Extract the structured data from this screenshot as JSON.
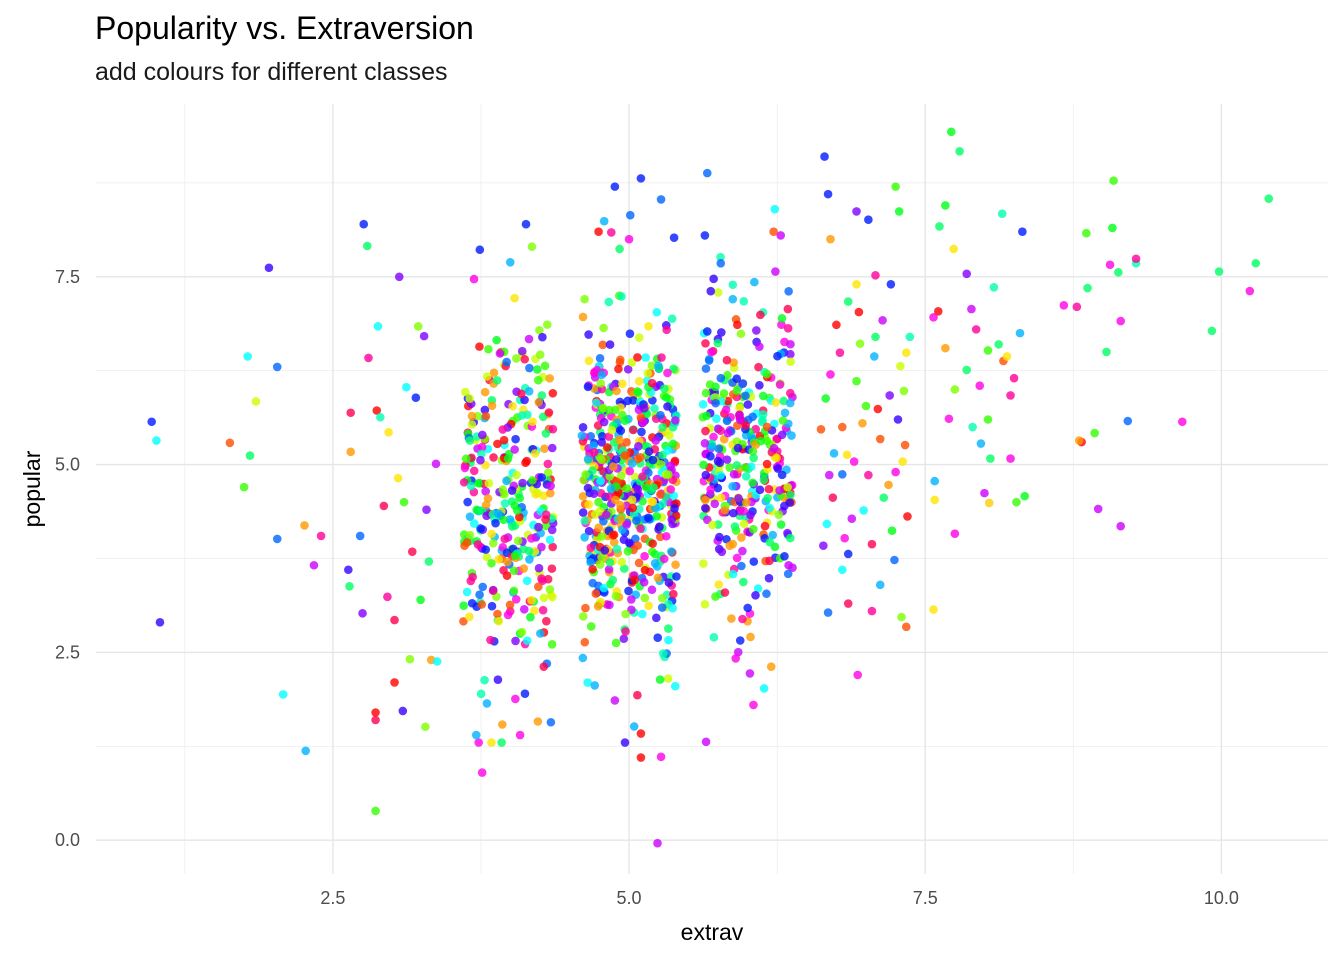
{
  "title": "Popularity vs. Extraversion",
  "subtitle": "add colours for different classes",
  "chart_data": {
    "type": "scatter",
    "title": "Popularity vs. Extraversion",
    "subtitle": "add colours for different classes",
    "xlabel": "extrav",
    "ylabel": "popular",
    "xlim": [
      0.5,
      10.9
    ],
    "ylim": [
      -0.45,
      9.8
    ],
    "x_ticks": [
      2.5,
      5.0,
      7.5,
      10.0
    ],
    "x_tick_labels": [
      "2.5",
      "5.0",
      "7.5",
      "10.0"
    ],
    "y_ticks": [
      0.0,
      2.5,
      5.0,
      7.5
    ],
    "y_tick_labels": [
      "0.0",
      "2.5",
      "5.0",
      "7.5"
    ],
    "grid": true,
    "legend": "none",
    "point_alpha": 0.8,
    "palette": [
      "#FF0000",
      "#FF4D00",
      "#FF9900",
      "#FFE500",
      "#CCFF00",
      "#80FF00",
      "#33FF00",
      "#00FF19",
      "#00FF66",
      "#00FFB2",
      "#00FFFF",
      "#00B3FF",
      "#0066FF",
      "#001AFF",
      "#3300FF",
      "#8000FF",
      "#CC00FF",
      "#FF00E6",
      "#FF0099",
      "#FF004D"
    ],
    "points": [
      {
        "x": 0.97,
        "y": 5.57,
        "color": "#001AFF"
      },
      {
        "x": 1.01,
        "y": 5.32,
        "color": "#00FFFF"
      },
      {
        "x": 1.04,
        "y": 2.9,
        "color": "#3300FF"
      },
      {
        "x": 1.63,
        "y": 5.29,
        "color": "#FF4D00"
      },
      {
        "x": 1.75,
        "y": 4.7,
        "color": "#33FF00"
      },
      {
        "x": 1.78,
        "y": 6.44,
        "color": "#00FFFF"
      },
      {
        "x": 1.8,
        "y": 5.12,
        "color": "#00FF66"
      },
      {
        "x": 1.85,
        "y": 5.84,
        "color": "#CCFF00"
      },
      {
        "x": 1.96,
        "y": 7.62,
        "color": "#3300FF"
      },
      {
        "x": 2.03,
        "y": 6.3,
        "color": "#0066FF"
      },
      {
        "x": 2.03,
        "y": 4.01,
        "color": "#0066FF"
      },
      {
        "x": 2.08,
        "y": 1.94,
        "color": "#00FFFF"
      },
      {
        "x": 2.26,
        "y": 4.19,
        "color": "#FF9900"
      },
      {
        "x": 2.27,
        "y": 1.19,
        "color": "#00B3FF"
      },
      {
        "x": 2.34,
        "y": 3.66,
        "color": "#CC00FF"
      },
      {
        "x": 2.4,
        "y": 4.05,
        "color": "#FF0099"
      },
      {
        "x": 2.76,
        "y": 8.2,
        "color": "#001AFF"
      },
      {
        "x": 2.79,
        "y": 7.91,
        "color": "#00FF66"
      },
      {
        "x": 2.86,
        "y": 0.39,
        "color": "#33FF00"
      },
      {
        "x": 2.88,
        "y": 6.84,
        "color": "#00FFFF"
      },
      {
        "x": 3.06,
        "y": 7.5,
        "color": "#8000FF"
      },
      {
        "x": 3.02,
        "y": 2.1,
        "color": "#FF0000"
      },
      {
        "x": 3.09,
        "y": 1.72,
        "color": "#3300FF"
      },
      {
        "x": 2.86,
        "y": 1.7,
        "color": "#FF0000"
      },
      {
        "x": 2.86,
        "y": 1.6,
        "color": "#FF004D"
      },
      {
        "x": 3.28,
        "y": 1.51,
        "color": "#80FF00"
      },
      {
        "x": 3.15,
        "y": 2.41,
        "color": "#80FF00"
      },
      {
        "x": 3.33,
        "y": 2.4,
        "color": "#FF9900"
      },
      {
        "x": 3.38,
        "y": 2.38,
        "color": "#00FFFF"
      },
      {
        "x": 2.63,
        "y": 3.6,
        "color": "#3300FF"
      },
      {
        "x": 2.64,
        "y": 3.38,
        "color": "#00FF66"
      },
      {
        "x": 2.65,
        "y": 5.69,
        "color": "#FF004D"
      },
      {
        "x": 2.65,
        "y": 5.17,
        "color": "#FF9900"
      },
      {
        "x": 2.73,
        "y": 4.05,
        "color": "#0066FF"
      },
      {
        "x": 2.75,
        "y": 3.02,
        "color": "#8000FF"
      },
      {
        "x": 2.87,
        "y": 5.72,
        "color": "#FF0000"
      },
      {
        "x": 2.93,
        "y": 4.45,
        "color": "#FF004D"
      },
      {
        "x": 2.96,
        "y": 3.24,
        "color": "#FF0099"
      },
      {
        "x": 3.05,
        "y": 4.82,
        "color": "#FFE500"
      },
      {
        "x": 3.12,
        "y": 6.03,
        "color": "#00FFFF"
      },
      {
        "x": 3.17,
        "y": 3.84,
        "color": "#FF004D"
      },
      {
        "x": 3.22,
        "y": 6.84,
        "color": "#80FF00"
      },
      {
        "x": 3.29,
        "y": 4.4,
        "color": "#8000FF"
      },
      {
        "x": 3.37,
        "y": 5.01,
        "color": "#CC00FF"
      },
      {
        "x": 2.8,
        "y": 6.42,
        "color": "#FF0099"
      },
      {
        "x": 2.9,
        "y": 5.63,
        "color": "#00FFB2"
      },
      {
        "x": 3.02,
        "y": 2.93,
        "color": "#FF004D"
      },
      {
        "x": 3.1,
        "y": 4.5,
        "color": "#33FF00"
      },
      {
        "x": 3.2,
        "y": 5.89,
        "color": "#001AFF"
      },
      {
        "x": 3.27,
        "y": 6.71,
        "color": "#8000FF"
      },
      {
        "x": 3.31,
        "y": 3.71,
        "color": "#00FF66"
      },
      {
        "x": 2.97,
        "y": 5.43,
        "color": "#FFE500"
      },
      {
        "x": 3.24,
        "y": 3.2,
        "color": "#00FF19"
      },
      {
        "x": 3.74,
        "y": 7.86,
        "color": "#001AFF"
      },
      {
        "x": 4.13,
        "y": 8.2,
        "color": "#001AFF"
      },
      {
        "x": 4.18,
        "y": 7.9,
        "color": "#80FF00"
      },
      {
        "x": 3.71,
        "y": 1.4,
        "color": "#00B3FF"
      },
      {
        "x": 3.76,
        "y": 0.9,
        "color": "#FF00E6"
      },
      {
        "x": 3.8,
        "y": 1.82,
        "color": "#00B3FF"
      },
      {
        "x": 3.93,
        "y": 1.54,
        "color": "#FF9900"
      },
      {
        "x": 4.04,
        "y": 1.88,
        "color": "#FF00E6"
      },
      {
        "x": 4.08,
        "y": 1.4,
        "color": "#FF00E6"
      },
      {
        "x": 4.23,
        "y": 1.58,
        "color": "#FF9900"
      },
      {
        "x": 4.34,
        "y": 1.57,
        "color": "#0066FF"
      },
      {
        "x": 3.78,
        "y": 2.13,
        "color": "#00FFB2"
      },
      {
        "x": 4.28,
        "y": 2.31,
        "color": "#FF004D"
      },
      {
        "x": 4.71,
        "y": 2.06,
        "color": "#00B3FF"
      },
      {
        "x": 4.88,
        "y": 1.86,
        "color": "#CC00FF"
      },
      {
        "x": 5.07,
        "y": 1.93,
        "color": "#FF004D"
      },
      {
        "x": 5.1,
        "y": 1.42,
        "color": "#FF0000"
      },
      {
        "x": 5.1,
        "y": 1.1,
        "color": "#FF0000"
      },
      {
        "x": 5.27,
        "y": 1.11,
        "color": "#FF00E6"
      },
      {
        "x": 5.24,
        "y": -0.04,
        "color": "#CC00FF"
      },
      {
        "x": 5.39,
        "y": 2.05,
        "color": "#00FFFF"
      },
      {
        "x": 4.88,
        "y": 8.7,
        "color": "#001AFF"
      },
      {
        "x": 5.1,
        "y": 8.81,
        "color": "#001AFF"
      },
      {
        "x": 5.27,
        "y": 8.53,
        "color": "#0066FF"
      },
      {
        "x": 5.01,
        "y": 8.32,
        "color": "#0066FF"
      },
      {
        "x": 4.79,
        "y": 8.24,
        "color": "#00B3FF"
      },
      {
        "x": 4.85,
        "y": 8.09,
        "color": "#FF0099"
      },
      {
        "x": 5.0,
        "y": 8.0,
        "color": "#FF00E6"
      },
      {
        "x": 4.92,
        "y": 7.87,
        "color": "#00FF66"
      },
      {
        "x": 5.38,
        "y": 8.02,
        "color": "#001AFF"
      },
      {
        "x": 5.66,
        "y": 8.88,
        "color": "#0066FF"
      },
      {
        "x": 5.65,
        "y": 1.31,
        "color": "#CC00FF"
      },
      {
        "x": 5.9,
        "y": 2.42,
        "color": "#FF00E6"
      },
      {
        "x": 6.02,
        "y": 2.22,
        "color": "#CC00FF"
      },
      {
        "x": 6.05,
        "y": 1.8,
        "color": "#FF00E6"
      },
      {
        "x": 6.14,
        "y": 2.02,
        "color": "#00FFFF"
      },
      {
        "x": 6.2,
        "y": 2.31,
        "color": "#FF9900"
      },
      {
        "x": 6.23,
        "y": 8.4,
        "color": "#00FFFF"
      },
      {
        "x": 6.28,
        "y": 8.05,
        "color": "#CC00FF"
      },
      {
        "x": 5.64,
        "y": 8.05,
        "color": "#001AFF"
      },
      {
        "x": 6.65,
        "y": 9.1,
        "color": "#001AFF"
      },
      {
        "x": 6.68,
        "y": 8.6,
        "color": "#001AFF"
      },
      {
        "x": 6.92,
        "y": 8.37,
        "color": "#8000FF"
      },
      {
        "x": 7.02,
        "y": 8.26,
        "color": "#001AFF"
      },
      {
        "x": 7.25,
        "y": 8.7,
        "color": "#33FF00"
      },
      {
        "x": 7.28,
        "y": 8.37,
        "color": "#00FF19"
      },
      {
        "x": 6.68,
        "y": 3.03,
        "color": "#0066FF"
      },
      {
        "x": 6.64,
        "y": 3.92,
        "color": "#8000FF"
      },
      {
        "x": 6.93,
        "y": 2.2,
        "color": "#FF00E6"
      },
      {
        "x": 6.85,
        "y": 3.15,
        "color": "#FF004D"
      },
      {
        "x": 7.05,
        "y": 3.05,
        "color": "#FF0099"
      },
      {
        "x": 7.12,
        "y": 3.4,
        "color": "#00B3FF"
      },
      {
        "x": 7.3,
        "y": 2.97,
        "color": "#80FF00"
      },
      {
        "x": 7.34,
        "y": 2.84,
        "color": "#FF4D00"
      },
      {
        "x": 6.8,
        "y": 3.6,
        "color": "#00FFFF"
      },
      {
        "x": 6.85,
        "y": 7.17,
        "color": "#00FF66"
      },
      {
        "x": 6.92,
        "y": 7.4,
        "color": "#FFE500"
      },
      {
        "x": 7.08,
        "y": 7.52,
        "color": "#FF0099"
      },
      {
        "x": 7.21,
        "y": 7.4,
        "color": "#001AFF"
      },
      {
        "x": 6.8,
        "y": 5.5,
        "color": "#FF4D00"
      },
      {
        "x": 6.7,
        "y": 8.0,
        "color": "#FF9900"
      },
      {
        "x": 7.72,
        "y": 9.43,
        "color": "#00FF19"
      },
      {
        "x": 7.79,
        "y": 9.17,
        "color": "#00FF66"
      },
      {
        "x": 7.67,
        "y": 8.45,
        "color": "#00FF19"
      },
      {
        "x": 7.62,
        "y": 8.17,
        "color": "#00FF66"
      },
      {
        "x": 7.74,
        "y": 7.87,
        "color": "#FFE500"
      },
      {
        "x": 7.61,
        "y": 7.04,
        "color": "#FF0000"
      },
      {
        "x": 7.67,
        "y": 6.55,
        "color": "#FF9900"
      },
      {
        "x": 7.7,
        "y": 5.61,
        "color": "#FF00E6"
      },
      {
        "x": 7.75,
        "y": 6.0,
        "color": "#80FF00"
      },
      {
        "x": 7.89,
        "y": 7.07,
        "color": "#CC00FF"
      },
      {
        "x": 7.93,
        "y": 6.8,
        "color": "#FF0099"
      },
      {
        "x": 8.03,
        "y": 6.52,
        "color": "#33FF00"
      },
      {
        "x": 8.12,
        "y": 6.6,
        "color": "#00FF66"
      },
      {
        "x": 8.16,
        "y": 6.38,
        "color": "#FF4D00"
      },
      {
        "x": 8.25,
        "y": 6.15,
        "color": "#FF0099"
      },
      {
        "x": 8.08,
        "y": 7.36,
        "color": "#00FFB2"
      },
      {
        "x": 8.15,
        "y": 8.34,
        "color": "#00FFB2"
      },
      {
        "x": 8.32,
        "y": 8.1,
        "color": "#001AFF"
      },
      {
        "x": 7.85,
        "y": 6.26,
        "color": "#00FF66"
      },
      {
        "x": 7.96,
        "y": 6.05,
        "color": "#FF00E6"
      },
      {
        "x": 7.85,
        "y": 7.54,
        "color": "#8000FF"
      },
      {
        "x": 7.57,
        "y": 6.96,
        "color": "#FF00E6"
      },
      {
        "x": 7.58,
        "y": 4.78,
        "color": "#00B3FF"
      },
      {
        "x": 7.58,
        "y": 4.53,
        "color": "#FFE500"
      },
      {
        "x": 7.75,
        "y": 4.08,
        "color": "#FF00E6"
      },
      {
        "x": 7.57,
        "y": 3.07,
        "color": "#FFE500"
      },
      {
        "x": 8.0,
        "y": 4.62,
        "color": "#CC00FF"
      },
      {
        "x": 8.04,
        "y": 4.49,
        "color": "#FFCC00"
      },
      {
        "x": 8.27,
        "y": 4.5,
        "color": "#33FF00"
      },
      {
        "x": 8.34,
        "y": 4.58,
        "color": "#00FF19"
      },
      {
        "x": 8.22,
        "y": 5.08,
        "color": "#FF00E6"
      },
      {
        "x": 8.05,
        "y": 5.08,
        "color": "#00FF66"
      },
      {
        "x": 7.97,
        "y": 5.28,
        "color": "#00B3FF"
      },
      {
        "x": 7.9,
        "y": 5.5,
        "color": "#00FFB2"
      },
      {
        "x": 8.3,
        "y": 6.75,
        "color": "#00B3FF"
      },
      {
        "x": 8.22,
        "y": 5.92,
        "color": "#FF0099"
      },
      {
        "x": 8.03,
        "y": 5.6,
        "color": "#33FF00"
      },
      {
        "x": 8.19,
        "y": 6.44,
        "color": "#FFE500"
      },
      {
        "x": 8.67,
        "y": 7.12,
        "color": "#FF00E6"
      },
      {
        "x": 8.78,
        "y": 7.1,
        "color": "#FF0099"
      },
      {
        "x": 8.82,
        "y": 5.3,
        "color": "#FF0000"
      },
      {
        "x": 8.8,
        "y": 5.32,
        "color": "#FF9900"
      },
      {
        "x": 8.93,
        "y": 5.42,
        "color": "#33FF00"
      },
      {
        "x": 8.96,
        "y": 4.41,
        "color": "#CC00FF"
      },
      {
        "x": 8.87,
        "y": 7.35,
        "color": "#00FF66"
      },
      {
        "x": 8.86,
        "y": 8.08,
        "color": "#33FF00"
      },
      {
        "x": 9.03,
        "y": 6.5,
        "color": "#00FF66"
      },
      {
        "x": 9.06,
        "y": 7.66,
        "color": "#FF00E6"
      },
      {
        "x": 9.08,
        "y": 8.15,
        "color": "#00FF19"
      },
      {
        "x": 9.09,
        "y": 8.78,
        "color": "#33FF00"
      },
      {
        "x": 9.13,
        "y": 7.56,
        "color": "#00FF66"
      },
      {
        "x": 9.15,
        "y": 6.91,
        "color": "#FF00E6"
      },
      {
        "x": 9.15,
        "y": 4.18,
        "color": "#CC00FF"
      },
      {
        "x": 9.21,
        "y": 5.58,
        "color": "#0066FF"
      },
      {
        "x": 9.28,
        "y": 7.68,
        "color": "#00FFB2"
      },
      {
        "x": 9.28,
        "y": 7.74,
        "color": "#FF0099"
      },
      {
        "x": 9.67,
        "y": 5.57,
        "color": "#FF00E6"
      },
      {
        "x": 9.92,
        "y": 6.78,
        "color": "#00FF66"
      },
      {
        "x": 9.98,
        "y": 7.57,
        "color": "#00FF66"
      },
      {
        "x": 10.24,
        "y": 7.31,
        "color": "#FF00E6"
      },
      {
        "x": 10.29,
        "y": 7.68,
        "color": "#00FF66"
      },
      {
        "x": 10.4,
        "y": 8.54,
        "color": "#00FF66"
      },
      {
        "x": 6.62,
        "y": 5.47,
        "color": "#FF4D00"
      },
      {
        "x": 6.66,
        "y": 5.88,
        "color": "#00FF19"
      },
      {
        "x": 6.7,
        "y": 6.2,
        "color": "#FF00E6"
      },
      {
        "x": 6.72,
        "y": 4.56,
        "color": "#FF004D"
      },
      {
        "x": 6.8,
        "y": 4.87,
        "color": "#0066FF"
      },
      {
        "x": 6.84,
        "y": 5.13,
        "color": "#FFE500"
      },
      {
        "x": 6.88,
        "y": 4.28,
        "color": "#CC00FF"
      },
      {
        "x": 6.92,
        "y": 6.11,
        "color": "#33FF00"
      },
      {
        "x": 6.97,
        "y": 5.55,
        "color": "#FF9900"
      },
      {
        "x": 7.02,
        "y": 4.86,
        "color": "#FF0099"
      },
      {
        "x": 7.07,
        "y": 6.44,
        "color": "#00B3FF"
      },
      {
        "x": 7.1,
        "y": 5.74,
        "color": "#FF0000"
      },
      {
        "x": 7.15,
        "y": 4.56,
        "color": "#00FF66"
      },
      {
        "x": 7.2,
        "y": 5.92,
        "color": "#8000FF"
      },
      {
        "x": 7.25,
        "y": 4.9,
        "color": "#FF00E6"
      },
      {
        "x": 7.29,
        "y": 6.31,
        "color": "#CCFF00"
      },
      {
        "x": 7.33,
        "y": 5.26,
        "color": "#FF4D00"
      },
      {
        "x": 7.37,
        "y": 6.7,
        "color": "#00FFB2"
      },
      {
        "x": 6.67,
        "y": 4.21,
        "color": "#00FFFF"
      },
      {
        "x": 6.75,
        "y": 6.86,
        "color": "#FF0000"
      },
      {
        "x": 6.85,
        "y": 3.81,
        "color": "#001AFF"
      },
      {
        "x": 6.95,
        "y": 6.61,
        "color": "#80FF00"
      },
      {
        "x": 7.05,
        "y": 3.94,
        "color": "#FF004D"
      },
      {
        "x": 7.14,
        "y": 6.92,
        "color": "#CC00FF"
      },
      {
        "x": 7.22,
        "y": 4.12,
        "color": "#00FF19"
      },
      {
        "x": 7.31,
        "y": 5.04,
        "color": "#FFE500"
      },
      {
        "x": 7.35,
        "y": 4.31,
        "color": "#FF0000"
      },
      {
        "x": 6.73,
        "y": 5.15,
        "color": "#00B3FF"
      },
      {
        "x": 6.9,
        "y": 5.04,
        "color": "#FF00E6"
      },
      {
        "x": 7.0,
        "y": 5.78,
        "color": "#33FF00"
      },
      {
        "x": 7.19,
        "y": 4.73,
        "color": "#FF9900"
      },
      {
        "x": 7.27,
        "y": 5.6,
        "color": "#3300FF"
      },
      {
        "x": 6.78,
        "y": 6.49,
        "color": "#FF0099"
      },
      {
        "x": 6.98,
        "y": 4.39,
        "color": "#00FFFF"
      },
      {
        "x": 7.12,
        "y": 5.34,
        "color": "#FF4D00"
      },
      {
        "x": 7.32,
        "y": 5.98,
        "color": "#80FF00"
      },
      {
        "x": 6.82,
        "y": 4.02,
        "color": "#FF00E6"
      },
      {
        "x": 7.08,
        "y": 6.7,
        "color": "#00FF66"
      },
      {
        "x": 7.24,
        "y": 3.73,
        "color": "#0066FF"
      },
      {
        "x": 6.94,
        "y": 7.03,
        "color": "#FF0000"
      },
      {
        "x": 7.34,
        "y": 6.49,
        "color": "#FFE500"
      },
      {
        "x": 6.69,
        "y": 4.86,
        "color": "#CC00FF"
      }
    ]
  },
  "clusters": [
    {
      "cx": 3.98,
      "cy": 4.62,
      "sx": 0.19,
      "sy": 1.12,
      "n": 330
    },
    {
      "cx": 5.0,
      "cy": 4.72,
      "sx": 0.2,
      "sy": 0.98,
      "n": 560
    },
    {
      "cx": 6.0,
      "cy": 5.1,
      "sx": 0.19,
      "sy": 1.05,
      "n": 360
    }
  ]
}
